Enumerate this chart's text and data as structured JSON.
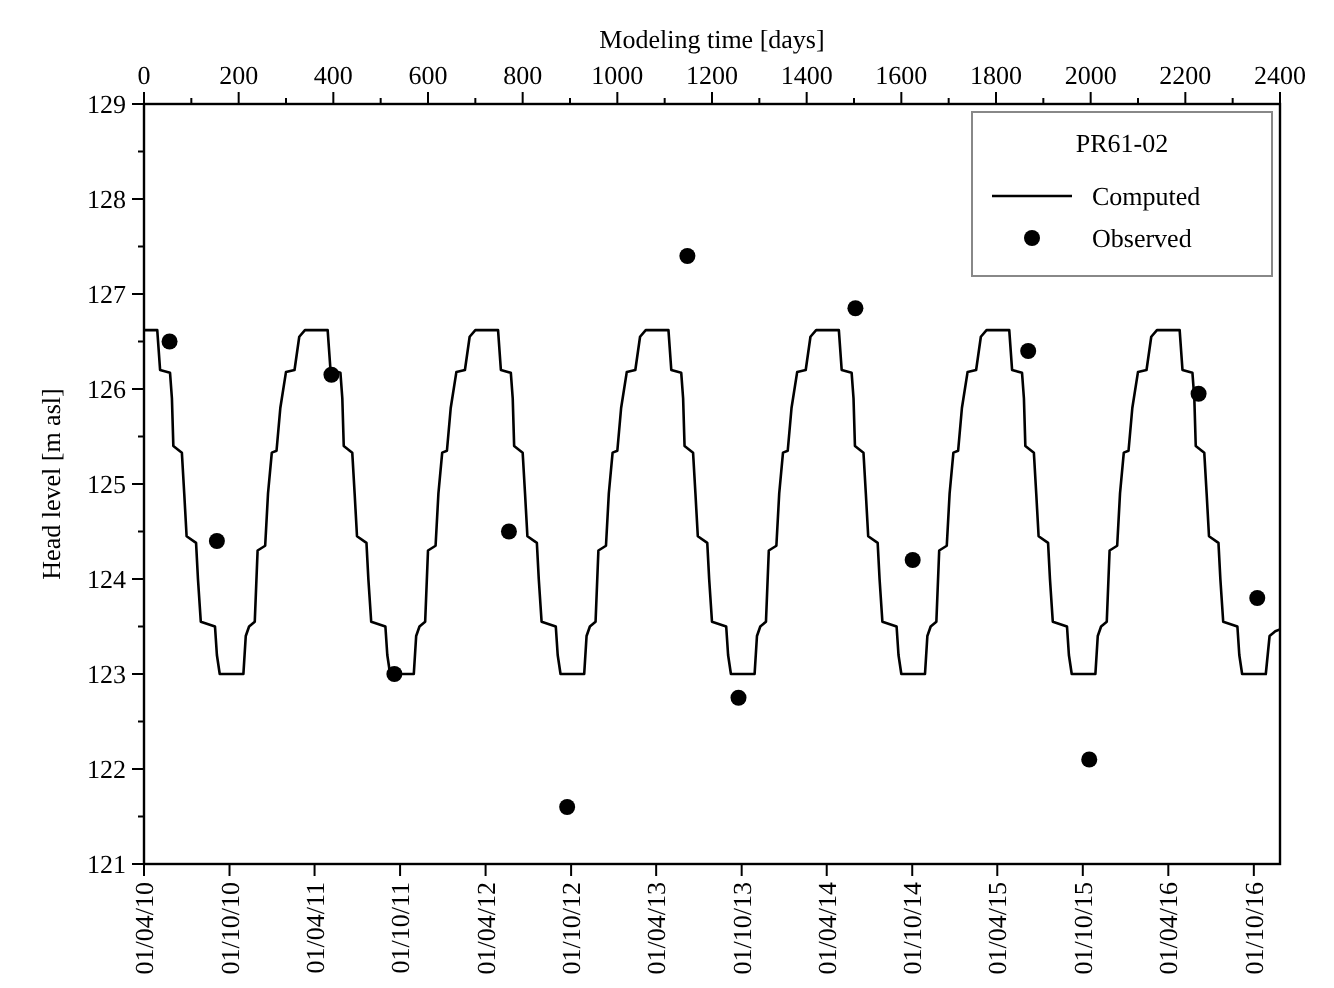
{
  "chart_data": {
    "type": "line",
    "xlabel": "Modeling time [days]",
    "ylabel": "Head level [m asl]",
    "legend_title": "PR61-02",
    "legend": "top right",
    "grid": false,
    "x2lim": [
      "2010-04-01",
      "2016-11-26"
    ],
    "xlim": [
      0,
      2400
    ],
    "ylim": [
      121,
      129
    ],
    "x2ticks": [
      {
        "value": "2010-04-01",
        "label": "01/04/10"
      },
      {
        "value": "2010-10-01",
        "label": "01/10/10"
      },
      {
        "value": "2011-04-01",
        "label": "01/04/11"
      },
      {
        "value": "2011-10-01",
        "label": "01/10/11"
      },
      {
        "value": "2012-04-01",
        "label": "01/04/12"
      },
      {
        "value": "2012-10-01",
        "label": "01/10/12"
      },
      {
        "value": "2013-04-01",
        "label": "01/04/13"
      },
      {
        "value": "2013-10-01",
        "label": "01/10/13"
      },
      {
        "value": "2014-04-01",
        "label": "01/04/14"
      },
      {
        "value": "2014-10-01",
        "label": "01/10/14"
      },
      {
        "value": "2015-04-01",
        "label": "01/04/15"
      },
      {
        "value": "2015-10-01",
        "label": "01/10/15"
      },
      {
        "value": "2016-04-01",
        "label": "01/04/16"
      },
      {
        "value": "2016-10-01",
        "label": "01/10/16"
      }
    ],
    "xticks": [
      0,
      {
        "value": 100,
        "label": null
      },
      200,
      {
        "value": 300,
        "label": null
      },
      400,
      {
        "value": 500,
        "label": null
      },
      600,
      {
        "value": 700,
        "label": null
      },
      800,
      {
        "value": 900,
        "label": null
      },
      1000,
      {
        "value": 1100,
        "label": null
      },
      1200,
      {
        "value": 1300,
        "label": null
      },
      1400,
      {
        "value": 1500,
        "label": null
      },
      1600,
      {
        "value": 1700,
        "label": null
      },
      1800,
      {
        "value": 1900,
        "label": null
      },
      2000,
      {
        "value": 2100,
        "label": null
      },
      2200,
      {
        "value": 2300,
        "label": null
      },
      2400
    ],
    "yticks": [
      121,
      {
        "value": 121.5,
        "label": null
      },
      122,
      {
        "value": 122.5,
        "label": null
      },
      123,
      {
        "value": 123.5,
        "label": null
      },
      124,
      {
        "value": 124.5,
        "label": null
      },
      125,
      {
        "value": 125.5,
        "label": null
      },
      126,
      {
        "value": 126.5,
        "label": null
      },
      127,
      {
        "value": 127.5,
        "label": null
      },
      128,
      {
        "value": 128.5,
        "label": null
      },
      129
    ],
    "series": [
      {
        "name": "Computed",
        "color": "#000000",
        "line_style": "solid",
        "x": [
          0,
          28,
          34,
          55,
          59,
          62,
          80,
          85,
          90,
          110,
          114,
          120,
          150,
          154,
          160,
          210,
          215,
          222,
          234,
          240,
          256,
          262,
          270,
          280,
          288,
          300,
          318,
          328,
          340,
          388,
          394,
          415,
          419,
          422,
          440,
          445,
          450,
          470,
          474,
          480,
          510,
          514,
          520,
          570,
          575,
          582,
          594,
          600,
          616,
          622,
          630,
          640,
          648,
          660,
          678,
          688,
          700,
          748,
          754,
          775,
          779,
          782,
          800,
          805,
          810,
          830,
          834,
          840,
          870,
          874,
          880,
          930,
          935,
          942,
          954,
          960,
          976,
          982,
          990,
          1000,
          1008,
          1020,
          1038,
          1048,
          1060,
          1108,
          1114,
          1135,
          1139,
          1142,
          1160,
          1165,
          1170,
          1190,
          1194,
          1200,
          1230,
          1234,
          1240,
          1290,
          1295,
          1302,
          1314,
          1320,
          1336,
          1342,
          1350,
          1360,
          1368,
          1380,
          1398,
          1408,
          1420,
          1468,
          1474,
          1495,
          1499,
          1502,
          1520,
          1525,
          1530,
          1550,
          1554,
          1560,
          1590,
          1594,
          1600,
          1650,
          1655,
          1662,
          1674,
          1680,
          1696,
          1702,
          1710,
          1720,
          1728,
          1740,
          1758,
          1768,
          1780,
          1828,
          1834,
          1855,
          1859,
          1862,
          1880,
          1885,
          1890,
          1910,
          1914,
          1920,
          1950,
          1954,
          1960,
          2010,
          2015,
          2022,
          2034,
          2040,
          2056,
          2062,
          2070,
          2080,
          2088,
          2100,
          2118,
          2128,
          2140,
          2188,
          2194,
          2215,
          2219,
          2222,
          2240,
          2245,
          2250,
          2270,
          2274,
          2280,
          2310,
          2314,
          2320,
          2370,
          2378,
          2390,
          2400
        ],
        "values": [
          126.62,
          126.62,
          126.2,
          126.17,
          125.9,
          125.4,
          125.33,
          124.9,
          124.45,
          124.38,
          124.0,
          123.55,
          123.5,
          123.2,
          123.0,
          123.0,
          123.4,
          123.5,
          123.55,
          124.3,
          124.35,
          124.9,
          125.33,
          125.35,
          125.8,
          126.18,
          126.2,
          126.55,
          126.62,
          126.62,
          126.2,
          126.17,
          125.9,
          125.4,
          125.33,
          124.9,
          124.45,
          124.38,
          124.0,
          123.55,
          123.5,
          123.2,
          123.0,
          123.0,
          123.4,
          123.5,
          123.55,
          124.3,
          124.35,
          124.9,
          125.33,
          125.35,
          125.8,
          126.18,
          126.2,
          126.55,
          126.62,
          126.62,
          126.2,
          126.17,
          125.9,
          125.4,
          125.33,
          124.9,
          124.45,
          124.38,
          124.0,
          123.55,
          123.5,
          123.2,
          123.0,
          123.0,
          123.4,
          123.5,
          123.55,
          124.3,
          124.35,
          124.9,
          125.33,
          125.35,
          125.8,
          126.18,
          126.2,
          126.55,
          126.62,
          126.62,
          126.2,
          126.17,
          125.9,
          125.4,
          125.33,
          124.9,
          124.45,
          124.38,
          124.0,
          123.55,
          123.5,
          123.2,
          123.0,
          123.0,
          123.4,
          123.5,
          123.55,
          124.3,
          124.35,
          124.9,
          125.33,
          125.35,
          125.8,
          126.18,
          126.2,
          126.55,
          126.62,
          126.62,
          126.2,
          126.17,
          125.9,
          125.4,
          125.33,
          124.9,
          124.45,
          124.38,
          124.0,
          123.55,
          123.5,
          123.2,
          123.0,
          123.0,
          123.4,
          123.5,
          123.55,
          124.3,
          124.35,
          124.9,
          125.33,
          125.35,
          125.8,
          126.18,
          126.2,
          126.55,
          126.62,
          126.62,
          126.2,
          126.17,
          125.9,
          125.4,
          125.33,
          124.9,
          124.45,
          124.38,
          124.0,
          123.55,
          123.5,
          123.2,
          123.0,
          123.0,
          123.4,
          123.5,
          123.55,
          124.3,
          124.35,
          124.9,
          125.33,
          125.35,
          125.8,
          126.18,
          126.2,
          126.55,
          126.62,
          126.62,
          126.2,
          126.17,
          125.9,
          125.4,
          125.33,
          124.9,
          124.45,
          124.38,
          124.0,
          123.55,
          123.5,
          123.2,
          123.0,
          123.0,
          123.4,
          123.45,
          123.47
        ]
      },
      {
        "name": "Observed",
        "type": "scatter",
        "color": "#000000",
        "marker": "circle",
        "x": [
          54,
          154,
          396,
          529,
          771,
          894,
          1148,
          1256,
          1503,
          1624,
          1868,
          1997,
          2228,
          2352
        ],
        "values": [
          126.5,
          124.4,
          126.15,
          123.0,
          124.5,
          121.6,
          127.4,
          122.75,
          126.85,
          124.2,
          126.4,
          122.1,
          125.95,
          123.8
        ]
      }
    ]
  }
}
